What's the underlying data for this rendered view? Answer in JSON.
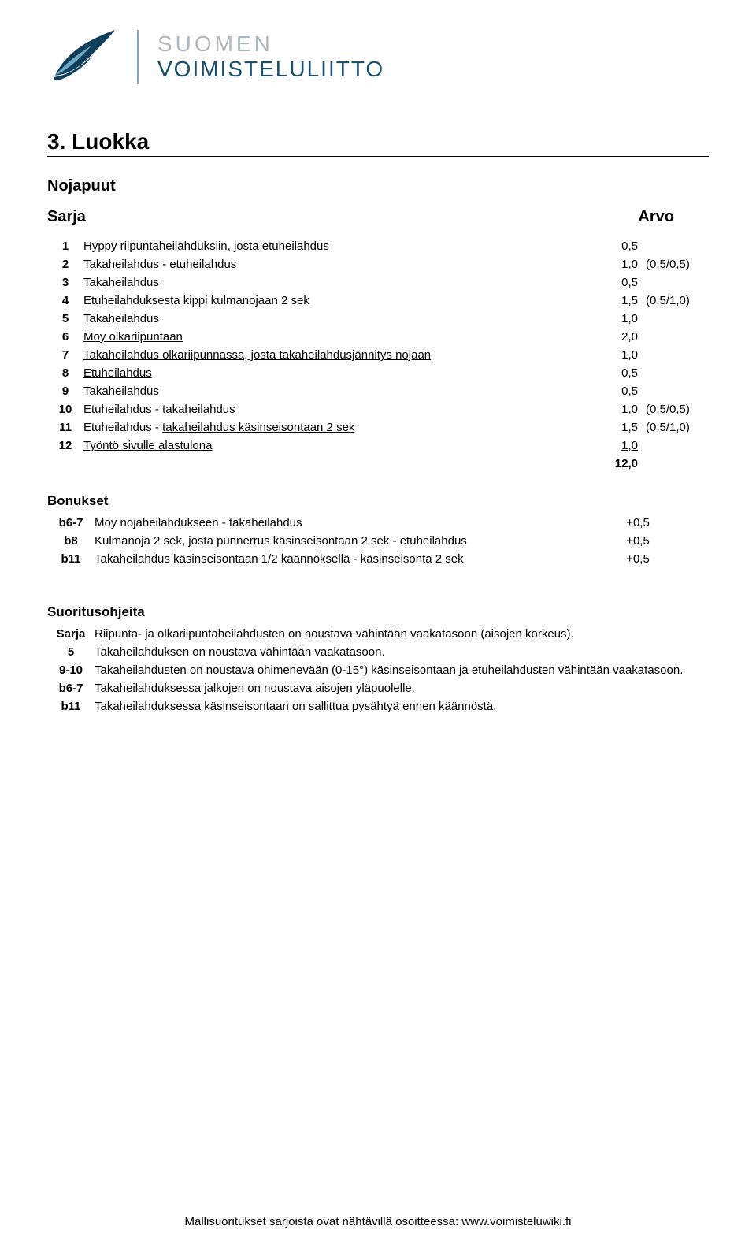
{
  "logo": {
    "brand1": "SUOMEN",
    "brand2": "VOIMISTELULIITTO",
    "colors": {
      "light": "#aeb7bd",
      "dark": "#1a4f6e",
      "divider": "#80a8b8",
      "swoosh_dark": "#0f3e5c",
      "swoosh_light": "#6fa8c2"
    }
  },
  "title": "3. Luokka",
  "section": "Nojapuut",
  "table": {
    "header_left": "Sarja",
    "header_right": "Arvo",
    "rows": [
      {
        "n": "1",
        "desc": "Hyppy riipuntaheilahduksiin, josta etuheilahdus",
        "underline": false,
        "val": "0,5",
        "extra": ""
      },
      {
        "n": "2",
        "desc": "Takaheilahdus - etuheilahdus",
        "underline": false,
        "val": "1,0",
        "extra": "(0,5/0,5)"
      },
      {
        "n": "3",
        "desc": "Takaheilahdus",
        "underline": false,
        "val": "0,5",
        "extra": ""
      },
      {
        "n": "4",
        "desc": "Etuheilahduksesta kippi kulmanojaan 2 sek",
        "underline": false,
        "val": "1,5",
        "extra": "(0,5/1,0)"
      },
      {
        "n": "5",
        "desc": "Takaheilahdus",
        "underline": false,
        "val": "1,0",
        "extra": ""
      },
      {
        "n": "6",
        "desc": "Moy olkariipuntaan",
        "underline": true,
        "val": "2,0",
        "extra": ""
      },
      {
        "n": "7",
        "desc": "Takaheilahdus olkariipunnassa, josta takaheilahdusjännitys nojaan",
        "underline": true,
        "val": "1,0",
        "extra": ""
      },
      {
        "n": "8",
        "desc": "Etuheilahdus",
        "underline": true,
        "val": "0,5",
        "extra": ""
      },
      {
        "n": "9",
        "desc": "Takaheilahdus",
        "underline": false,
        "val": "0,5",
        "extra": ""
      },
      {
        "n": "10",
        "desc": "Etuheilahdus - takaheilahdus",
        "underline": false,
        "val": "1,0",
        "extra": "(0,5/0,5)"
      },
      {
        "n": "11",
        "desc_pre": "Etuheilahdus - ",
        "desc_ul": "takaheilahdus käsinseisontaan 2 sek",
        "val": "1,5",
        "extra": "(0,5/1,0)"
      },
      {
        "n": "12",
        "desc": "Työntö sivulle alastulona",
        "underline": true,
        "val": "1,0",
        "extra": "",
        "last": true
      }
    ],
    "total": "12,0"
  },
  "bonukset": {
    "title": "Bonukset",
    "rows": [
      {
        "lbl": "b6-7",
        "txt": "Moy nojaheilahdukseen - takaheilahdus",
        "val": "+0,5"
      },
      {
        "lbl": "b8",
        "txt": "Kulmanoja 2 sek, josta punnerrus käsinseisontaan 2 sek - etuheilahdus",
        "val": "+0,5"
      },
      {
        "lbl": "b11",
        "txt": "Takaheilahdus käsinseisontaan 1/2 käännöksellä - käsinseisonta 2 sek",
        "val": "+0,5"
      }
    ]
  },
  "instructions": {
    "title": "Suoritusohjeita",
    "rows": [
      {
        "lbl": "Sarja",
        "txt": "Riipunta- ja olkariipuntaheilahdusten on noustava vähintään vaakatasoon (aisojen korkeus)."
      },
      {
        "lbl": "5",
        "txt": "Takaheilahduksen on noustava vähintään vaakatasoon."
      },
      {
        "lbl": "9-10",
        "txt": "Takaheilahdusten on noustava ohimenevään (0-15°)  käsinseisontaan ja etuheilahdusten vähintään vaakatasoon."
      },
      {
        "lbl": "b6-7",
        "txt": "Takaheilahduksessa jalkojen on noustava aisojen yläpuolelle."
      },
      {
        "lbl": "b11",
        "txt": "Takaheilahduksessa käsinseisontaan on sallittua pysähtyä ennen käännöstä."
      }
    ]
  },
  "footer": "Mallisuoritukset sarjoista ovat nähtävillä osoitteessa: www.voimisteluwiki.fi"
}
